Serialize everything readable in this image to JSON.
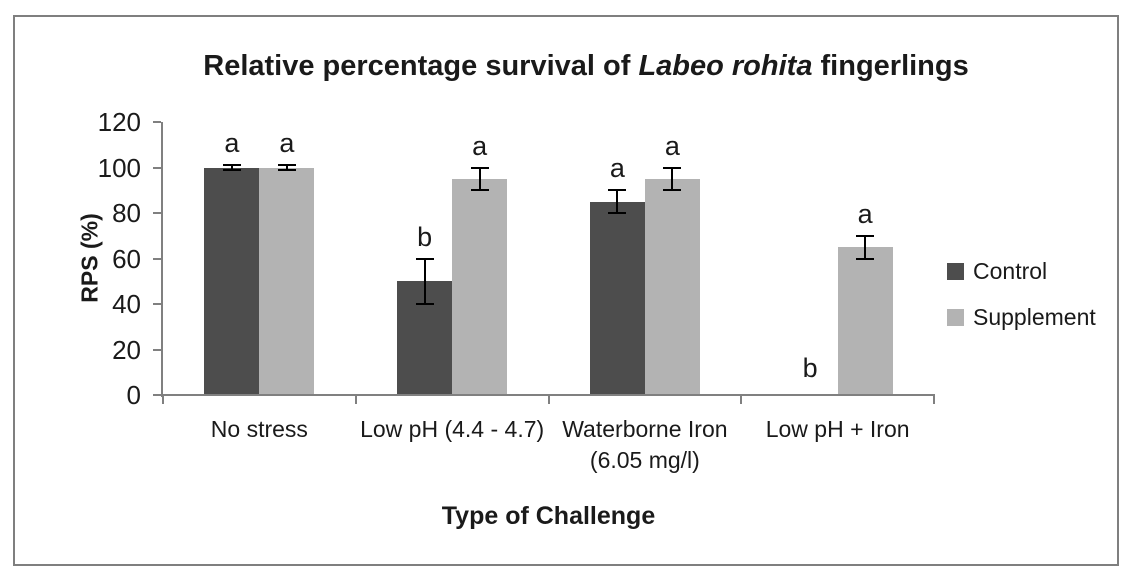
{
  "figure": {
    "border_color": "#7f7f7f",
    "background_color": "#ffffff"
  },
  "chart_data": {
    "type": "bar",
    "title": {
      "prefix": "Relative percentage survival of ",
      "italic": "Labeo rohita",
      "suffix": " fingerlings"
    },
    "xlabel": "Type of Challenge",
    "ylabel": "RPS (%)",
    "ylim": [
      0,
      120
    ],
    "yticks": [
      0,
      20,
      40,
      60,
      80,
      100,
      120
    ],
    "grid": false,
    "legend_position": "right",
    "categories": [
      "No stress",
      "Low pH (4.4 - 4.7)",
      "Waterborne Iron\n(6.05 mg/l)",
      "Low pH + Iron"
    ],
    "series": [
      {
        "name": "Control",
        "color": "#4d4d4d",
        "values": [
          100,
          50,
          85,
          0
        ],
        "error_bars": [
          1,
          10,
          5,
          null
        ],
        "significance_letters": [
          "a",
          "b",
          "a",
          "b"
        ]
      },
      {
        "name": "Supplement",
        "color": "#b3b3b3",
        "values": [
          100,
          95,
          95,
          65
        ],
        "error_bars": [
          1,
          5,
          5,
          5
        ],
        "significance_letters": [
          "a",
          "a",
          "a",
          "a"
        ]
      }
    ],
    "error_bar_color": "#000000",
    "axis_color": "#808080",
    "text_color": "#1a1a1a"
  }
}
